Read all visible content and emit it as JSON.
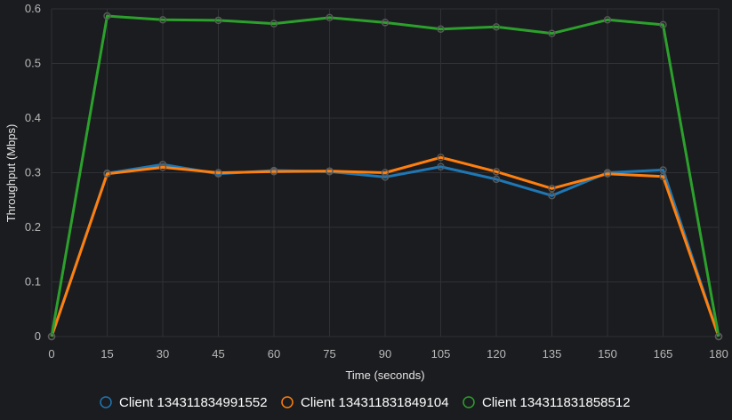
{
  "chart_data": {
    "type": "line",
    "xlabel": "Time (seconds)",
    "ylabel": "Throughput (Mbps)",
    "xlim": [
      0,
      180
    ],
    "ylim": [
      0,
      0.6
    ],
    "x_ticks": [
      0,
      15,
      30,
      45,
      60,
      75,
      90,
      105,
      120,
      135,
      150,
      165,
      180
    ],
    "y_ticks": [
      0,
      0.1,
      0.2,
      0.3,
      0.4,
      0.5,
      0.6
    ],
    "grid": true,
    "legend_position": "bottom",
    "x": [
      0,
      15,
      30,
      45,
      60,
      75,
      90,
      105,
      120,
      135,
      150,
      165,
      180
    ],
    "series": [
      {
        "name": "Client 134311834991552",
        "color": "#1f77b4",
        "values": [
          0,
          0.299,
          0.315,
          0.298,
          0.304,
          0.302,
          0.292,
          0.311,
          0.288,
          0.258,
          0.3,
          0.305,
          0
        ]
      },
      {
        "name": "Client 134311831849104",
        "color": "#ff7f0e",
        "values": [
          0,
          0.298,
          0.31,
          0.3,
          0.302,
          0.303,
          0.3,
          0.328,
          0.302,
          0.271,
          0.298,
          0.293,
          0
        ]
      },
      {
        "name": "Client 134311831858512",
        "color": "#2ca02c",
        "values": [
          0,
          0.587,
          0.58,
          0.579,
          0.573,
          0.584,
          0.575,
          0.563,
          0.567,
          0.555,
          0.58,
          0.571,
          0
        ]
      }
    ]
  }
}
